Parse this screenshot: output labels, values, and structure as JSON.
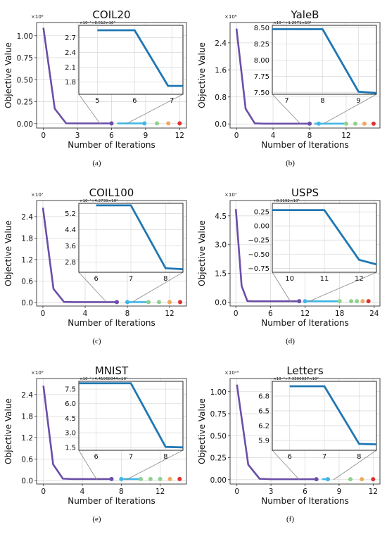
{
  "figure": {
    "colors": {
      "main_line": "#6b4ea8",
      "inset_line": "#1f77b4",
      "tail_line": "#3fb7e6",
      "grid": "#d9d9d9",
      "axis": "#333333",
      "marker_colors": [
        "#6b4ea8",
        "#3fb7e6",
        "#8fd18f",
        "#f0a860",
        "#e03030"
      ]
    }
  },
  "chart_data": [
    {
      "caption": "(a)",
      "type": "line",
      "title": "COIL20",
      "xlabel": "Number of Iterations",
      "ylabel": "Objective Value",
      "multiplier": "×10⁶",
      "xlim": [
        -0.6,
        12.6
      ],
      "ylim": [
        -0.05,
        1.15
      ],
      "xticks": [
        0,
        3,
        6,
        9,
        12
      ],
      "xtick_labels": [
        "0",
        "3",
        "6",
        "9",
        "12"
      ],
      "yticks": [
        0,
        0.25,
        0.5,
        0.75,
        1.0
      ],
      "ytick_labels": [
        "0.00",
        "0.25",
        "0.50",
        "0.75",
        "1.00"
      ],
      "series": [
        {
          "x": [
            0,
            1,
            2,
            3,
            4,
            5,
            6
          ],
          "y": [
            1.09,
            0.17,
            0.004,
            0.003,
            0.003,
            0.003,
            0.003
          ]
        }
      ],
      "tail": {
        "x_start": 6.5,
        "x_end": 8.9,
        "y": 0.003
      },
      "markers": {
        "x": [
          6,
          8.9,
          10,
          11,
          12
        ],
        "y": [
          0.003,
          0.003,
          0.003,
          0.003,
          0.003
        ]
      },
      "zoom_range": [
        5,
        7.3
      ],
      "inset": {
        "offset_label": "×10⁻¹+8.512×10³",
        "xlim": [
          4.5,
          7.3
        ],
        "ylim": [
          1.55,
          2.95
        ],
        "xticks": [
          5,
          6,
          7
        ],
        "xtick_labels": [
          "5",
          "6",
          "7"
        ],
        "yticks": [
          1.8,
          2.1,
          2.4,
          2.7
        ],
        "ytick_labels": [
          "1.8",
          "2.1",
          "2.4",
          "2.7"
        ],
        "series": [
          {
            "x": [
              5,
              6,
              6.9,
              7.3
            ],
            "y": [
              2.85,
              2.85,
              1.72,
              1.72
            ]
          }
        ]
      }
    },
    {
      "caption": "(b)",
      "type": "line",
      "title": "YaleB",
      "xlabel": "Number of Iterations",
      "ylabel": "Objective Value",
      "multiplier": "×10⁶",
      "xlim": [
        -0.7,
        15.7
      ],
      "ylim": [
        -0.12,
        3.0
      ],
      "xticks": [
        0,
        4,
        8,
        12
      ],
      "xtick_labels": [
        "0",
        "4",
        "8",
        "12"
      ],
      "yticks": [
        0,
        0.8,
        1.6,
        2.4
      ],
      "ytick_labels": [
        "0.0",
        "0.8",
        "1.6",
        "2.4"
      ],
      "series": [
        {
          "x": [
            0,
            1,
            2,
            3,
            4,
            5,
            6,
            7,
            8
          ],
          "y": [
            2.82,
            0.45,
            0.02,
            0.01,
            0.01,
            0.01,
            0.01,
            0.01,
            0.01
          ]
        }
      ],
      "tail": {
        "x_start": 8.5,
        "x_end": 12,
        "y": 0.01
      },
      "markers": {
        "x": [
          8,
          9,
          12,
          13,
          14,
          15
        ],
        "y": [
          0.01,
          0.01,
          0.01,
          0.01,
          0.01,
          0.01
        ]
      },
      "zoom_range": [
        7,
        9.5
      ],
      "inset": {
        "offset_label": "×10⁻¹+1.2971×10⁴",
        "xlim": [
          6.6,
          9.5
        ],
        "ylim": [
          7.47,
          8.54
        ],
        "xticks": [
          7,
          8,
          9
        ],
        "xtick_labels": [
          "7",
          "8",
          "9"
        ],
        "yticks": [
          7.5,
          7.75,
          8.0,
          8.25,
          8.5
        ],
        "ytick_labels": [
          "7.50",
          "7.75",
          "8.00",
          "8.25",
          "8.50"
        ],
        "series": [
          {
            "x": [
              6.6,
              8,
              9,
              9.5
            ],
            "y": [
              8.48,
              8.48,
              7.51,
              7.49
            ]
          }
        ]
      }
    },
    {
      "caption": "(c)",
      "type": "line",
      "title": "COIL100",
      "xlabel": "Number of Iterations",
      "ylabel": "Objective Value",
      "multiplier": "×10⁷",
      "xlim": [
        -0.6,
        13.6
      ],
      "ylim": [
        -0.1,
        2.85
      ],
      "xticks": [
        0,
        4,
        8,
        12
      ],
      "xtick_labels": [
        "0",
        "4",
        "8",
        "12"
      ],
      "yticks": [
        0,
        0.6,
        1.2,
        1.8,
        2.4
      ],
      "ytick_labels": [
        "0.0",
        "0.6",
        "1.2",
        "1.8",
        "2.4"
      ],
      "series": [
        {
          "x": [
            0,
            1,
            2,
            3,
            4,
            5,
            6,
            7
          ],
          "y": [
            2.65,
            0.38,
            0.015,
            0.01,
            0.01,
            0.01,
            0.01,
            0.01
          ]
        }
      ],
      "tail": {
        "x_start": 8,
        "x_end": 10,
        "y": 0.01
      },
      "markers": {
        "x": [
          7,
          8,
          10,
          11,
          12,
          13
        ],
        "y": [
          0.01,
          0.01,
          0.01,
          0.01,
          0.01,
          0.01
        ]
      },
      "zoom_range": [
        6,
        8.5
      ],
      "inset": {
        "offset_label": "×10⁻¹+4.2739×10⁴",
        "xlim": [
          5.5,
          8.5
        ],
        "ylim": [
          2.3,
          5.7
        ],
        "xticks": [
          6,
          7,
          8
        ],
        "xtick_labels": [
          "6",
          "7",
          "8"
        ],
        "yticks": [
          2.8,
          3.6,
          4.4,
          5.2
        ],
        "ytick_labels": [
          "2.8",
          "3.6",
          "4.4",
          "5.2"
        ],
        "series": [
          {
            "x": [
              6,
              7,
              8,
              8.5
            ],
            "y": [
              5.6,
              5.6,
              2.5,
              2.45
            ]
          }
        ]
      }
    },
    {
      "caption": "(d)",
      "type": "line",
      "title": "USPS",
      "xlabel": "Number of Iterations",
      "ylabel": "Objective Value",
      "multiplier": "×10⁷",
      "xlim": [
        -1,
        25
      ],
      "ylim": [
        -0.2,
        5.3
      ],
      "xticks": [
        0,
        6,
        12,
        18,
        24
      ],
      "xtick_labels": [
        "0",
        "6",
        "12",
        "18",
        "24"
      ],
      "yticks": [
        0,
        1.5,
        3.0,
        4.5
      ],
      "ytick_labels": [
        "0.0",
        "1.5",
        "3.0",
        "4.5"
      ],
      "series": [
        {
          "x": [
            0,
            1,
            2,
            3,
            4,
            5,
            6,
            7,
            8,
            9,
            10,
            11
          ],
          "y": [
            4.85,
            0.85,
            0.06,
            0.05,
            0.05,
            0.05,
            0.05,
            0.05,
            0.05,
            0.05,
            0.05,
            0.05
          ]
        }
      ],
      "tail": {
        "x_start": 12,
        "x_end": 18,
        "y": 0.05
      },
      "markers": {
        "x": [
          11,
          12,
          18,
          20,
          21,
          22,
          23
        ],
        "y": [
          0.05,
          0.05,
          0.05,
          0.05,
          0.05,
          0.05,
          0.05
        ]
      },
      "zoom_range": [
        9.5,
        12.5
      ],
      "inset": {
        "offset_label": "+8.3192×10⁵",
        "xlim": [
          9.5,
          12.5
        ],
        "ylim": [
          -0.82,
          0.4
        ],
        "xticks": [
          10,
          11,
          12
        ],
        "xtick_labels": [
          "10",
          "11",
          "12"
        ],
        "yticks": [
          -0.75,
          -0.5,
          -0.25,
          0,
          0.25
        ],
        "ytick_labels": [
          "−0.75",
          "−0.50",
          "−0.25",
          "0.00",
          "0.25"
        ],
        "series": [
          {
            "x": [
              9.5,
              11,
              12,
              12.5
            ],
            "y": [
              0.28,
              0.28,
              -0.6,
              -0.68
            ]
          }
        ]
      }
    },
    {
      "caption": "(e)",
      "type": "line",
      "title": "MNIST",
      "xlabel": "Number of Iterations",
      "ylabel": "Objective Value",
      "multiplier": "×10⁹",
      "xlim": [
        -0.7,
        14.7
      ],
      "ylim": [
        -0.1,
        2.85
      ],
      "xticks": [
        0,
        4,
        8,
        12
      ],
      "xtick_labels": [
        "0",
        "4",
        "8",
        "12"
      ],
      "yticks": [
        0,
        0.6,
        1.2,
        1.8,
        2.4
      ],
      "ytick_labels": [
        "0.0",
        "0.6",
        "1.2",
        "1.8",
        "2.4"
      ],
      "series": [
        {
          "x": [
            0,
            1,
            2,
            3,
            4,
            5,
            6,
            7
          ],
          "y": [
            2.65,
            0.45,
            0.05,
            0.04,
            0.04,
            0.04,
            0.04,
            0.04
          ]
        }
      ],
      "tail": {
        "x_start": 8,
        "x_end": 10,
        "y": 0.04
      },
      "markers": {
        "x": [
          7,
          8,
          10,
          11,
          12,
          13,
          14
        ],
        "y": [
          0.04,
          0.04,
          0.04,
          0.04,
          0.04,
          0.04,
          0.04
        ]
      },
      "zoom_range": [
        5.5,
        8.5
      ],
      "inset": {
        "offset_label": "×10⁻²+4.41968344×10⁷",
        "xlim": [
          5.5,
          8.5
        ],
        "ylim": [
          1.2,
          8.3
        ],
        "xticks": [
          6,
          7,
          8
        ],
        "xtick_labels": [
          "6",
          "7",
          "8"
        ],
        "yticks": [
          1.5,
          3.0,
          4.5,
          6.0,
          7.5
        ],
        "ytick_labels": [
          "1.5",
          "3.0",
          "4.5",
          "6.0",
          "7.5"
        ],
        "series": [
          {
            "x": [
              5.5,
              7,
              8,
              8.5
            ],
            "y": [
              8.1,
              8.1,
              1.55,
              1.5
            ]
          }
        ]
      }
    },
    {
      "caption": "(f)",
      "type": "line",
      "title": "Letters",
      "xlabel": "Number of Iterations",
      "ylabel": "Objective Value",
      "multiplier": "×10¹⁰",
      "xlim": [
        -0.6,
        12.6
      ],
      "ylim": [
        -0.05,
        1.15
      ],
      "xticks": [
        0,
        3,
        6,
        9,
        12
      ],
      "xtick_labels": [
        "0",
        "3",
        "6",
        "9",
        "12"
      ],
      "yticks": [
        0,
        0.25,
        0.5,
        0.75,
        1.0
      ],
      "ytick_labels": [
        "0.00",
        "0.25",
        "0.50",
        "0.75",
        "1.00"
      ],
      "series": [
        {
          "x": [
            0,
            1,
            2,
            3,
            4,
            5,
            6,
            7
          ],
          "y": [
            1.08,
            0.17,
            0.01,
            0.005,
            0.005,
            0.005,
            0.005,
            0.005
          ]
        }
      ],
      "tail": {
        "x_start": 7.5,
        "x_end": 8.2,
        "y": 0.005
      },
      "markers": {
        "x": [
          7,
          8,
          10,
          11,
          12
        ],
        "y": [
          0.005,
          0.005,
          0.005,
          0.005,
          0.005
        ]
      },
      "zoom_range": [
        5.5,
        8.5
      ],
      "inset": {
        "offset_label": "×10⁻³+7.3366037×10⁷",
        "xlim": [
          5.5,
          8.5
        ],
        "ylim": [
          5.7,
          7.1
        ],
        "xticks": [
          6,
          7,
          8
        ],
        "xtick_labels": [
          "6",
          "7",
          "8"
        ],
        "yticks": [
          5.9,
          6.2,
          6.5,
          6.8
        ],
        "ytick_labels": [
          "5.9",
          "6.2",
          "6.5",
          "6.8"
        ],
        "series": [
          {
            "x": [
              6,
              7,
              8,
              8.5
            ],
            "y": [
              7.0,
              7.0,
              5.83,
              5.82
            ]
          }
        ]
      }
    }
  ]
}
